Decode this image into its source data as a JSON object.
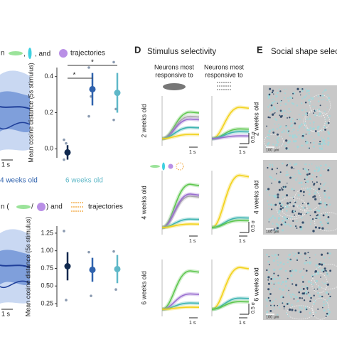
{
  "panel_c": {
    "heading_top": {
      "pre": "n",
      "mid1": ",",
      "mid2": ", and",
      "post": "trajectories"
    },
    "heading_bottom": {
      "pre": "n (",
      "mid": "/",
      "mid2": ") and",
      "post": "trajectories"
    },
    "scale_top": "1 s",
    "scale_bottom": "1 s",
    "ages": [
      "4 weeks old",
      "6 weeks old"
    ],
    "plots": [
      {
        "ylabel": "Mean cosine distance (5s stimulus)",
        "ylim": [
          -0.05,
          0.45
        ],
        "yticks": [
          {
            "value": 0,
            "label": "0.0"
          },
          {
            "value": 0.2,
            "label": "0.2"
          },
          {
            "value": 0.4,
            "label": "0.4"
          }
        ],
        "means": [
          -0.02,
          0.33,
          0.31
        ],
        "errors": [
          0.04,
          0.09,
          0.11
        ],
        "points": [
          [
            0.05,
            0.03,
            -0.06
          ],
          [
            0.45,
            0.29,
            0.18
          ],
          [
            0.48,
            0.22,
            0.16
          ]
        ],
        "significance_labels": [
          "*",
          "*"
        ]
      },
      {
        "ylabel": "Mean cosine distance (5s stimulus)",
        "ylim": [
          0.2,
          1.35
        ],
        "yticks": [
          {
            "value": 0.25,
            "label": "0.25"
          },
          {
            "value": 0.5,
            "label": "0.50"
          },
          {
            "value": 0.75,
            "label": "0.75"
          },
          {
            "value": 1,
            "label": "1.00"
          },
          {
            "value": 1.25,
            "label": "1.25"
          }
        ],
        "means": [
          0.78,
          0.73,
          0.74
        ],
        "errors": [
          0.2,
          0.17,
          0.2
        ],
        "points": [
          [
            1.28,
            0.3
          ],
          [
            0.98,
            0.36
          ],
          [
            0.99,
            0.45
          ]
        ]
      }
    ],
    "colors": [
      "#10294f",
      "#2f62ad",
      "#5fb8c8"
    ]
  },
  "panel_d": {
    "label": "D",
    "title": "Stimulus selectivity",
    "column_header": [
      "Neurons most",
      "responsive to"
    ],
    "rows": [
      "2 weeks old",
      "4 weeks old",
      "6 weeks old"
    ],
    "scale_time": "1 s",
    "scale_amp": "0.5 σ"
  },
  "panel_e": {
    "label": "E",
    "title": "Social shape selec",
    "rows": [
      "2 weeks old",
      "4 weeks old",
      "6 weeks old"
    ],
    "scale": "100 µm"
  }
}
